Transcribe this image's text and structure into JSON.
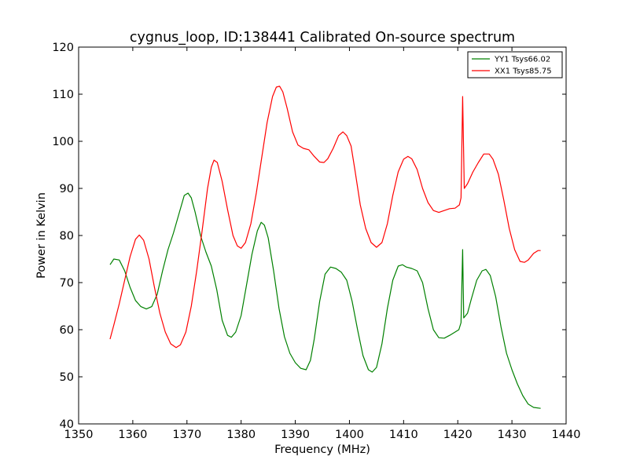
{
  "chart_data": {
    "type": "line",
    "title": "cygnus_loop, ID:138441 Calibrated On-source spectrum",
    "xlabel": "Frequency (MHz)",
    "ylabel": "Power in Kelvin",
    "xlim": [
      1350,
      1440
    ],
    "ylim": [
      40,
      120
    ],
    "xticks": [
      1350,
      1360,
      1370,
      1380,
      1390,
      1400,
      1410,
      1420,
      1430,
      1440
    ],
    "yticks": [
      40,
      50,
      60,
      70,
      80,
      90,
      100,
      110,
      120
    ],
    "grid": false,
    "legend_position": "top-right",
    "series": [
      {
        "name": "YY1 Tsys66.02",
        "color": "#008000",
        "points": [
          [
            1355.8,
            73.8
          ],
          [
            1356.5,
            75.0
          ],
          [
            1357.5,
            74.8
          ],
          [
            1358.5,
            72.5
          ],
          [
            1359.5,
            69.0
          ],
          [
            1360.5,
            66.2
          ],
          [
            1361.5,
            64.9
          ],
          [
            1362.5,
            64.4
          ],
          [
            1363.5,
            64.9
          ],
          [
            1364.5,
            67.5
          ],
          [
            1365.5,
            72.5
          ],
          [
            1366.5,
            77.0
          ],
          [
            1367.5,
            80.5
          ],
          [
            1368.5,
            84.5
          ],
          [
            1369.5,
            88.5
          ],
          [
            1370.2,
            89.0
          ],
          [
            1370.8,
            88.0
          ],
          [
            1371.5,
            85.0
          ],
          [
            1372.5,
            80.0
          ],
          [
            1373.5,
            76.5
          ],
          [
            1374.5,
            73.5
          ],
          [
            1375.5,
            68.5
          ],
          [
            1376.5,
            62.0
          ],
          [
            1377.5,
            58.8
          ],
          [
            1378.2,
            58.4
          ],
          [
            1379.0,
            59.5
          ],
          [
            1380.0,
            63.0
          ],
          [
            1381.0,
            69.5
          ],
          [
            1382.0,
            76.0
          ],
          [
            1383.0,
            81.0
          ],
          [
            1383.7,
            82.8
          ],
          [
            1384.3,
            82.2
          ],
          [
            1385.0,
            79.5
          ],
          [
            1386.0,
            72.5
          ],
          [
            1387.0,
            64.5
          ],
          [
            1388.0,
            58.5
          ],
          [
            1389.0,
            55.0
          ],
          [
            1390.0,
            53.0
          ],
          [
            1391.0,
            51.8
          ],
          [
            1392.0,
            51.5
          ],
          [
            1392.8,
            53.5
          ],
          [
            1393.5,
            58.0
          ],
          [
            1394.5,
            66.0
          ],
          [
            1395.5,
            71.8
          ],
          [
            1396.5,
            73.3
          ],
          [
            1397.5,
            73.0
          ],
          [
            1398.5,
            72.2
          ],
          [
            1399.5,
            70.5
          ],
          [
            1400.5,
            66.0
          ],
          [
            1401.5,
            60.0
          ],
          [
            1402.5,
            54.5
          ],
          [
            1403.5,
            51.5
          ],
          [
            1404.2,
            51.0
          ],
          [
            1405.0,
            52.0
          ],
          [
            1406.0,
            57.0
          ],
          [
            1407.0,
            64.5
          ],
          [
            1408.0,
            70.5
          ],
          [
            1409.0,
            73.5
          ],
          [
            1409.8,
            73.8
          ],
          [
            1410.5,
            73.3
          ],
          [
            1411.5,
            73.0
          ],
          [
            1412.5,
            72.5
          ],
          [
            1413.5,
            70.0
          ],
          [
            1414.5,
            64.5
          ],
          [
            1415.5,
            60.0
          ],
          [
            1416.5,
            58.3
          ],
          [
            1417.5,
            58.2
          ],
          [
            1418.5,
            58.8
          ],
          [
            1419.5,
            59.5
          ],
          [
            1420.2,
            60.0
          ],
          [
            1420.6,
            61.5
          ],
          [
            1420.9,
            77.0
          ],
          [
            1421.1,
            62.5
          ],
          [
            1421.8,
            63.5
          ],
          [
            1422.5,
            66.5
          ],
          [
            1423.5,
            70.5
          ],
          [
            1424.5,
            72.5
          ],
          [
            1425.2,
            72.8
          ],
          [
            1426.0,
            71.5
          ],
          [
            1427.0,
            67.0
          ],
          [
            1428.0,
            60.5
          ],
          [
            1429.0,
            55.0
          ],
          [
            1430.0,
            51.5
          ],
          [
            1431.0,
            48.5
          ],
          [
            1432.0,
            46.0
          ],
          [
            1433.0,
            44.2
          ],
          [
            1434.0,
            43.5
          ],
          [
            1435.3,
            43.3
          ]
        ]
      },
      {
        "name": "XX1 Tsys85.75",
        "color": "#ff0000",
        "points": [
          [
            1355.8,
            58.0
          ],
          [
            1356.5,
            61.0
          ],
          [
            1357.5,
            65.5
          ],
          [
            1358.5,
            70.5
          ],
          [
            1359.5,
            75.5
          ],
          [
            1360.5,
            79.2
          ],
          [
            1361.2,
            80.1
          ],
          [
            1362.0,
            79.0
          ],
          [
            1363.0,
            75.0
          ],
          [
            1364.0,
            69.0
          ],
          [
            1365.0,
            63.5
          ],
          [
            1366.0,
            59.5
          ],
          [
            1367.0,
            57.0
          ],
          [
            1368.0,
            56.2
          ],
          [
            1368.8,
            56.8
          ],
          [
            1369.8,
            59.5
          ],
          [
            1370.8,
            65.0
          ],
          [
            1371.8,
            72.5
          ],
          [
            1372.8,
            81.0
          ],
          [
            1373.8,
            90.0
          ],
          [
            1374.5,
            94.5
          ],
          [
            1375.0,
            96.0
          ],
          [
            1375.6,
            95.5
          ],
          [
            1376.5,
            91.5
          ],
          [
            1377.5,
            85.5
          ],
          [
            1378.5,
            80.0
          ],
          [
            1379.3,
            77.8
          ],
          [
            1380.0,
            77.3
          ],
          [
            1380.8,
            78.5
          ],
          [
            1381.8,
            82.5
          ],
          [
            1382.8,
            89.0
          ],
          [
            1383.8,
            96.5
          ],
          [
            1384.8,
            104.0
          ],
          [
            1385.8,
            109.5
          ],
          [
            1386.5,
            111.5
          ],
          [
            1387.1,
            111.7
          ],
          [
            1387.7,
            110.5
          ],
          [
            1388.5,
            107.0
          ],
          [
            1389.5,
            102.0
          ],
          [
            1390.5,
            99.2
          ],
          [
            1391.5,
            98.5
          ],
          [
            1392.5,
            98.2
          ],
          [
            1393.5,
            96.8
          ],
          [
            1394.5,
            95.6
          ],
          [
            1395.3,
            95.5
          ],
          [
            1396.0,
            96.3
          ],
          [
            1397.0,
            98.5
          ],
          [
            1398.0,
            101.2
          ],
          [
            1398.8,
            102.0
          ],
          [
            1399.5,
            101.2
          ],
          [
            1400.3,
            99.0
          ],
          [
            1401.0,
            94.0
          ],
          [
            1402.0,
            86.5
          ],
          [
            1403.0,
            81.5
          ],
          [
            1404.0,
            78.5
          ],
          [
            1405.0,
            77.5
          ],
          [
            1406.0,
            78.5
          ],
          [
            1407.0,
            82.5
          ],
          [
            1408.0,
            88.5
          ],
          [
            1409.0,
            93.5
          ],
          [
            1410.0,
            96.2
          ],
          [
            1410.8,
            96.8
          ],
          [
            1411.5,
            96.3
          ],
          [
            1412.5,
            94.0
          ],
          [
            1413.5,
            90.0
          ],
          [
            1414.5,
            87.0
          ],
          [
            1415.5,
            85.3
          ],
          [
            1416.5,
            84.9
          ],
          [
            1417.5,
            85.3
          ],
          [
            1418.5,
            85.7
          ],
          [
            1419.5,
            85.8
          ],
          [
            1420.3,
            86.5
          ],
          [
            1420.6,
            88.0
          ],
          [
            1420.9,
            109.5
          ],
          [
            1421.2,
            90.0
          ],
          [
            1421.8,
            91.0
          ],
          [
            1422.8,
            93.5
          ],
          [
            1423.8,
            95.5
          ],
          [
            1424.8,
            97.3
          ],
          [
            1425.8,
            97.3
          ],
          [
            1426.5,
            96.2
          ],
          [
            1427.5,
            93.0
          ],
          [
            1428.5,
            87.5
          ],
          [
            1429.5,
            81.5
          ],
          [
            1430.5,
            77.0
          ],
          [
            1431.5,
            74.5
          ],
          [
            1432.3,
            74.3
          ],
          [
            1433.0,
            74.8
          ],
          [
            1434.0,
            76.2
          ],
          [
            1434.8,
            76.8
          ],
          [
            1435.3,
            76.8
          ]
        ]
      }
    ]
  }
}
